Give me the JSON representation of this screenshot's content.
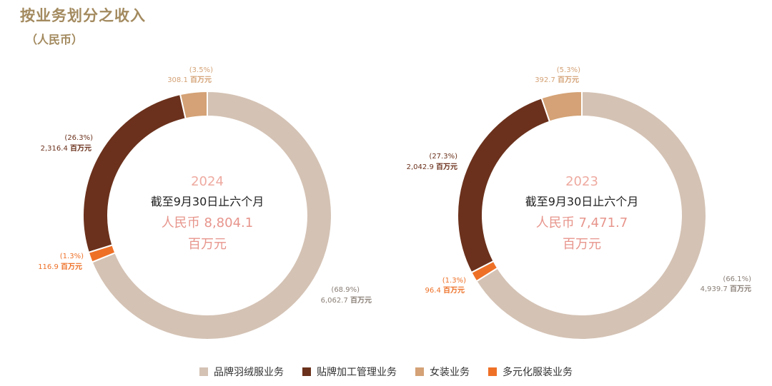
{
  "title": "按业务划分之收入",
  "subtitle": "（人民币）",
  "colors": {
    "brand_down": "#d4c2b4",
    "oem": "#6b311c",
    "womens": "#d4a276",
    "diversified": "#ee7027",
    "title": "#a38a5f",
    "center_year": "#eeaaa0",
    "center_total": "#e7958c"
  },
  "legend": [
    {
      "label": "品牌羽绒服业务",
      "color": "#d4c2b4"
    },
    {
      "label": "贴牌加工管理业务",
      "color": "#6b311c"
    },
    {
      "label": "女装业务",
      "color": "#d4a276"
    },
    {
      "label": "多元化服装业务",
      "color": "#ee7027"
    }
  ],
  "chart_data": [
    {
      "type": "pie",
      "donut": true,
      "year": "2024",
      "period": "截至9月30日止六个月",
      "total_label": "人民币 8,804.1",
      "total_unit": "百万元",
      "unit": "百万元",
      "slices": [
        {
          "name": "品牌羽绒服业务",
          "value": 6062.7,
          "value_label": "6,062.7",
          "pct": "(68.9%)"
        },
        {
          "name": "贴牌加工管理业务",
          "value": 2316.4,
          "value_label": "2,316.4",
          "pct": "(26.3%)"
        },
        {
          "name": "女装业务",
          "value": 308.1,
          "value_label": "308.1",
          "pct": "(3.5%)"
        },
        {
          "name": "多元化服装业务",
          "value": 116.9,
          "value_label": "116.9",
          "pct": "(1.3%)"
        }
      ]
    },
    {
      "type": "pie",
      "donut": true,
      "year": "2023",
      "period": "截至9月30日止六个月",
      "total_label": "人民币 7,471.7",
      "total_unit": "百万元",
      "unit": "百万元",
      "slices": [
        {
          "name": "品牌羽绒服业务",
          "value": 4939.7,
          "value_label": "4,939.7",
          "pct": "(66.1%)"
        },
        {
          "name": "贴牌加工管理业务",
          "value": 2042.9,
          "value_label": "2,042.9",
          "pct": "(27.3%)"
        },
        {
          "name": "女装业务",
          "value": 392.7,
          "value_label": "392.7",
          "pct": "(5.3%)"
        },
        {
          "name": "多元化服装业务",
          "value": 96.4,
          "value_label": "96.4",
          "pct": "(1.3%)"
        }
      ]
    }
  ]
}
